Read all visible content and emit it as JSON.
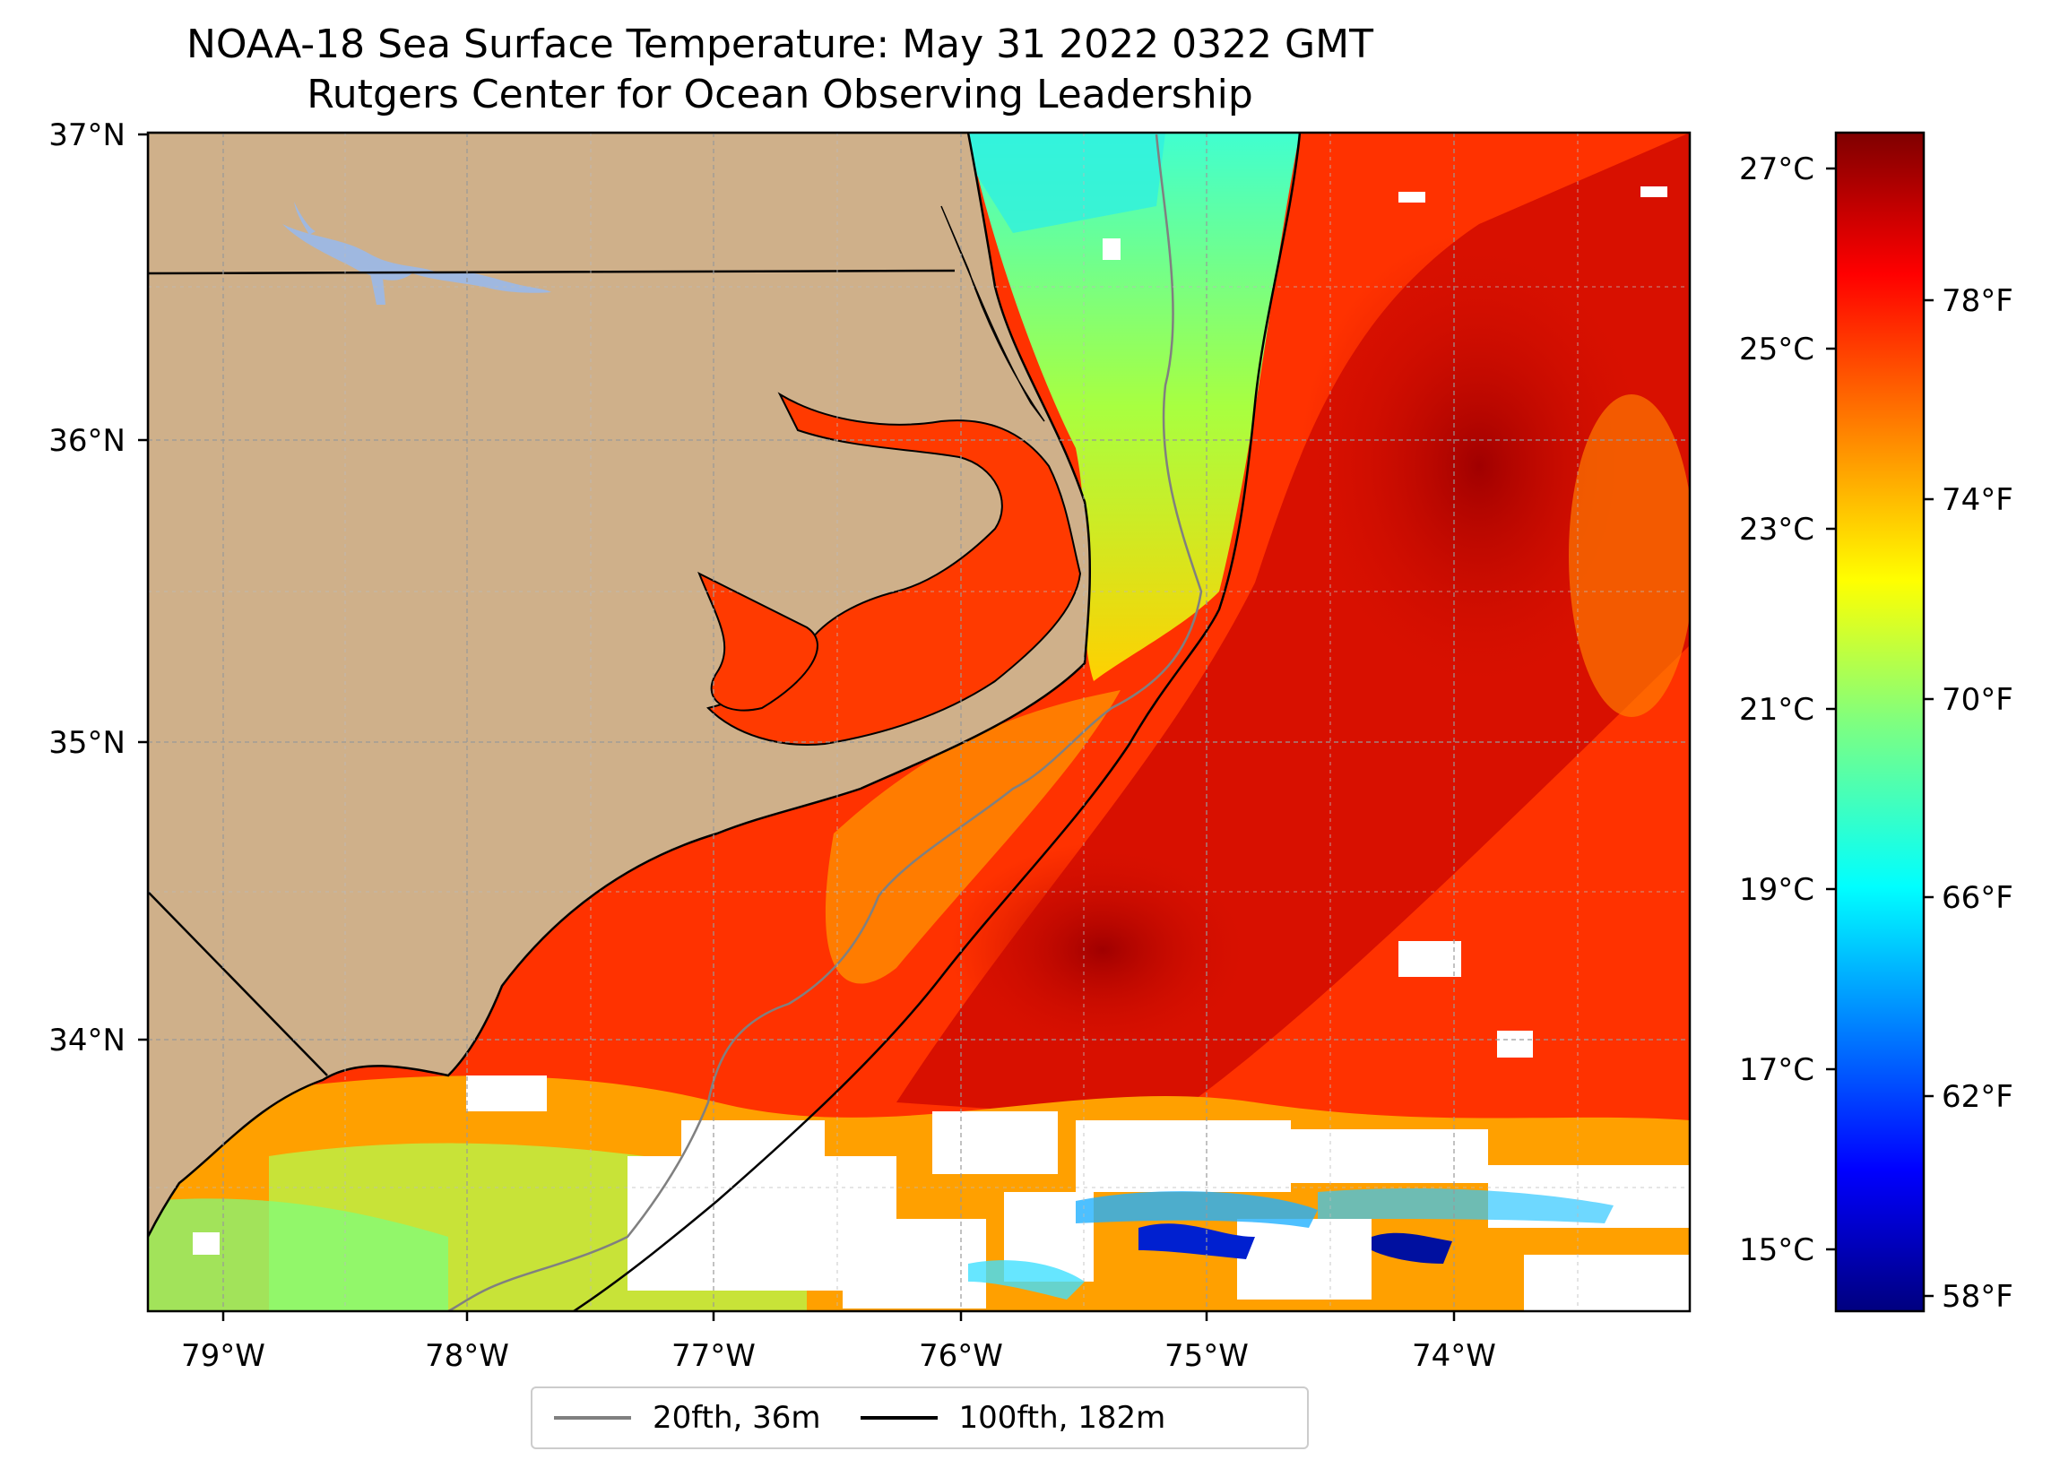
{
  "title_line1": "NOAA-18 Sea Surface Temperature: May 31 2022 0322 GMT",
  "title_line2": "Rutgers Center for Ocean Observing Leadership",
  "map": {
    "lon_range": [
      -79.3,
      -73.0
    ],
    "lat_range": [
      33.1,
      37.0
    ],
    "lon_ticks": [
      "79°W",
      "78°W",
      "77°W",
      "76°W",
      "75°W",
      "74°W"
    ],
    "lat_ticks": [
      "37°N",
      "36°N",
      "35°N",
      "34°N"
    ],
    "land_color": "#cfb08a",
    "lake_color": "#9fb8e0",
    "gridlines": true
  },
  "legend": {
    "items": [
      {
        "label": "20fth, 36m",
        "color": "#808080"
      },
      {
        "label": "100fth, 182m",
        "color": "#000000"
      }
    ]
  },
  "colorbar": {
    "colormap": "jet",
    "celsius_ticks": [
      "27°C",
      "25°C",
      "23°C",
      "21°C",
      "19°C",
      "17°C",
      "15°C"
    ],
    "fahrenheit_ticks": [
      "78°F",
      "74°F",
      "70°F",
      "66°F",
      "62°F",
      "58°F"
    ]
  }
}
